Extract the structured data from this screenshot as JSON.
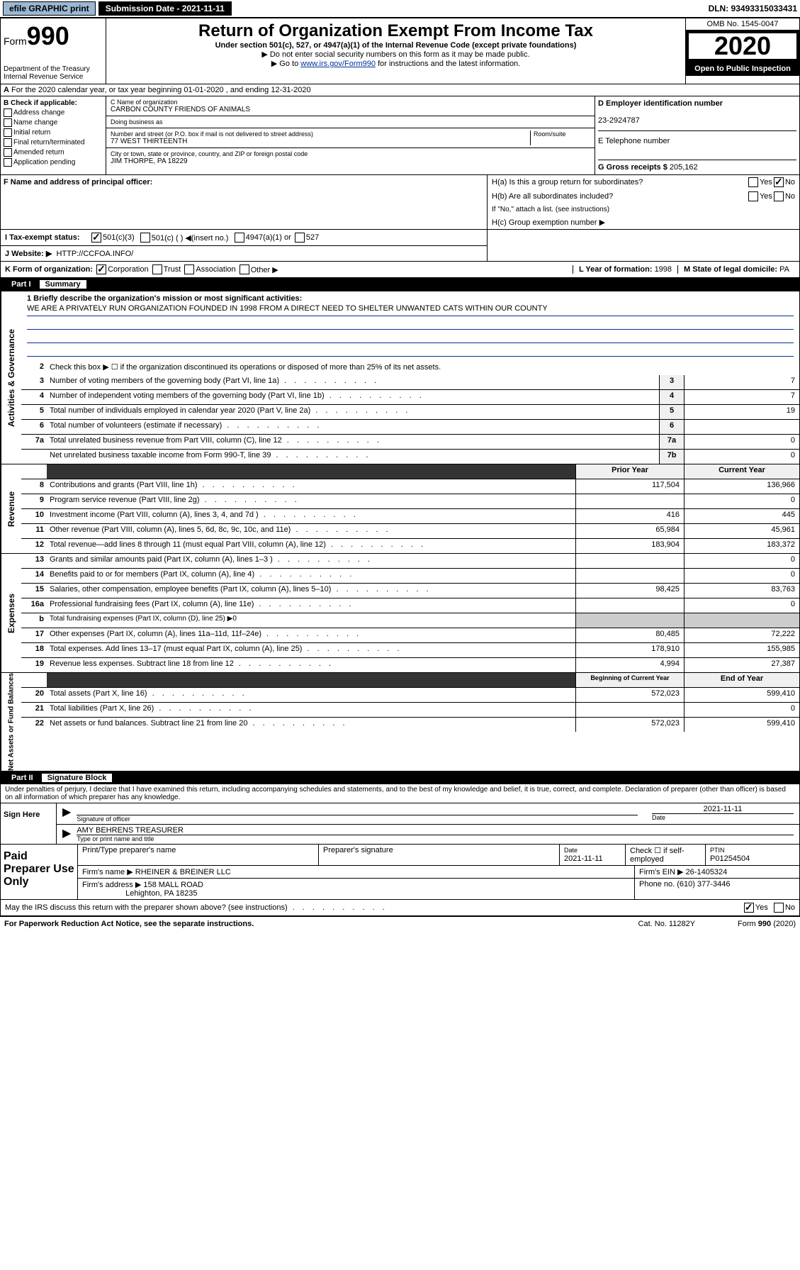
{
  "topbar": {
    "efile": "efile GRAPHIC print",
    "submission": "Submission Date - 2021-11-11",
    "dln": "DLN: 93493315033431"
  },
  "header": {
    "form_label": "Form",
    "form_num": "990",
    "dept": "Department of the Treasury Internal Revenue Service",
    "title": "Return of Organization Exempt From Income Tax",
    "subtitle": "Under section 501(c), 527, or 4947(a)(1) of the Internal Revenue Code (except private foundations)",
    "note1": "▶ Do not enter social security numbers on this form as it may be made public.",
    "note2_pre": "▶ Go to ",
    "note2_link": "www.irs.gov/Form990",
    "note2_post": " for instructions and the latest information.",
    "omb": "OMB No. 1545-0047",
    "year": "2020",
    "open": "Open to Public Inspection"
  },
  "rowA": "For the 2020 calendar year, or tax year beginning 01-01-2020    , and ending 12-31-2020",
  "sectionB": {
    "title": "B Check if applicable:",
    "items": [
      "Address change",
      "Name change",
      "Initial return",
      "Final return/terminated",
      "Amended return",
      "Application pending"
    ]
  },
  "sectionC": {
    "name_label": "C Name of organization",
    "name": "CARBON COUNTY FRIENDS OF ANIMALS",
    "dba_label": "Doing business as",
    "dba": "",
    "addr_label": "Number and street (or P.O. box if mail is not delivered to street address)",
    "room_label": "Room/suite",
    "addr": "77 WEST THIRTEENTH",
    "city_label": "City or town, state or province, country, and ZIP or foreign postal code",
    "city": "JIM THORPE, PA  18229"
  },
  "sectionD": {
    "ein_label": "D Employer identification number",
    "ein": "23-2924787",
    "phone_label": "E Telephone number",
    "phone": "",
    "gross_label": "G Gross receipts $",
    "gross": "205,162"
  },
  "sectionF": "F  Name and address of principal officer:",
  "sectionH": {
    "ha": "H(a)  Is this a group return for subordinates?",
    "hb": "H(b)  Are all subordinates included?",
    "hb_note": "If \"No,\" attach a list. (see instructions)",
    "hc": "H(c)  Group exemption number ▶"
  },
  "rowI": {
    "label": "I  Tax-exempt status:",
    "opt1": "501(c)(3)",
    "opt2": "501(c) (  ) ◀(insert no.)",
    "opt3": "4947(a)(1) or",
    "opt4": "527"
  },
  "rowJ": {
    "label": "J  Website: ▶",
    "url": "HTTP://CCFOA.INFO/"
  },
  "rowK": {
    "label": "K Form of organization:",
    "opts": [
      "Corporation",
      "Trust",
      "Association",
      "Other ▶"
    ],
    "l_label": "L Year of formation:",
    "l_val": "1998",
    "m_label": "M State of legal domicile:",
    "m_val": "PA"
  },
  "part1": {
    "label": "Part I",
    "title": "Summary"
  },
  "governance": {
    "label": "Activities & Governance",
    "line1_label": "1  Briefly describe the organization's mission or most significant activities:",
    "mission": "WE ARE A PRIVATELY RUN ORGANIZATION FOUNDED IN 1998 FROM A DIRECT NEED TO SHELTER UNWANTED CATS WITHIN OUR COUNTY",
    "line2": "Check this box ▶ ☐  if the organization discontinued its operations or disposed of more than 25% of its net assets.",
    "lines": [
      {
        "n": "3",
        "d": "Number of voting members of the governing body (Part VI, line 1a)",
        "box": "3",
        "v": "7"
      },
      {
        "n": "4",
        "d": "Number of independent voting members of the governing body (Part VI, line 1b)",
        "box": "4",
        "v": "7"
      },
      {
        "n": "5",
        "d": "Total number of individuals employed in calendar year 2020 (Part V, line 2a)",
        "box": "5",
        "v": "19"
      },
      {
        "n": "6",
        "d": "Total number of volunteers (estimate if necessary)",
        "box": "6",
        "v": ""
      },
      {
        "n": "7a",
        "d": "Total unrelated business revenue from Part VIII, column (C), line 12",
        "box": "7a",
        "v": "0"
      },
      {
        "n": "",
        "d": "Net unrelated business taxable income from Form 990-T, line 39",
        "box": "7b",
        "v": "0"
      }
    ]
  },
  "revenue": {
    "label": "Revenue",
    "header_prior": "Prior Year",
    "header_current": "Current Year",
    "lines": [
      {
        "n": "8",
        "d": "Contributions and grants (Part VIII, line 1h)",
        "p": "117,504",
        "c": "136,966"
      },
      {
        "n": "9",
        "d": "Program service revenue (Part VIII, line 2g)",
        "p": "",
        "c": "0"
      },
      {
        "n": "10",
        "d": "Investment income (Part VIII, column (A), lines 3, 4, and 7d )",
        "p": "416",
        "c": "445"
      },
      {
        "n": "11",
        "d": "Other revenue (Part VIII, column (A), lines 5, 6d, 8c, 9c, 10c, and 11e)",
        "p": "65,984",
        "c": "45,961"
      },
      {
        "n": "12",
        "d": "Total revenue—add lines 8 through 11 (must equal Part VIII, column (A), line 12)",
        "p": "183,904",
        "c": "183,372"
      }
    ]
  },
  "expenses": {
    "label": "Expenses",
    "lines": [
      {
        "n": "13",
        "d": "Grants and similar amounts paid (Part IX, column (A), lines 1–3 )",
        "p": "",
        "c": "0"
      },
      {
        "n": "14",
        "d": "Benefits paid to or for members (Part IX, column (A), line 4)",
        "p": "",
        "c": "0"
      },
      {
        "n": "15",
        "d": "Salaries, other compensation, employee benefits (Part IX, column (A), lines 5–10)",
        "p": "98,425",
        "c": "83,763"
      },
      {
        "n": "16a",
        "d": "Professional fundraising fees (Part IX, column (A), line 11e)",
        "p": "",
        "c": "0"
      },
      {
        "n": "b",
        "d": "Total fundraising expenses (Part IX, column (D), line 25) ▶0",
        "p": "—",
        "c": "—"
      },
      {
        "n": "17",
        "d": "Other expenses (Part IX, column (A), lines 11a–11d, 11f–24e)",
        "p": "80,485",
        "c": "72,222"
      },
      {
        "n": "18",
        "d": "Total expenses. Add lines 13–17 (must equal Part IX, column (A), line 25)",
        "p": "178,910",
        "c": "155,985"
      },
      {
        "n": "19",
        "d": "Revenue less expenses. Subtract line 18 from line 12",
        "p": "4,994",
        "c": "27,387"
      }
    ]
  },
  "netassets": {
    "label": "Net Assets or Fund Balances",
    "header_prior": "Beginning of Current Year",
    "header_current": "End of Year",
    "lines": [
      {
        "n": "20",
        "d": "Total assets (Part X, line 16)",
        "p": "572,023",
        "c": "599,410"
      },
      {
        "n": "21",
        "d": "Total liabilities (Part X, line 26)",
        "p": "",
        "c": "0"
      },
      {
        "n": "22",
        "d": "Net assets or fund balances. Subtract line 21 from line 20",
        "p": "572,023",
        "c": "599,410"
      }
    ]
  },
  "part2": {
    "label": "Part II",
    "title": "Signature Block",
    "perjury": "Under penalties of perjury, I declare that I have examined this return, including accompanying schedules and statements, and to the best of my knowledge and belief, it is true, correct, and complete. Declaration of preparer (other than officer) is based on all information of which preparer has any knowledge."
  },
  "sign": {
    "label": "Sign Here",
    "sig_label": "Signature of officer",
    "date": "2021-11-11",
    "date_label": "Date",
    "name": "AMY BEHRENS TREASURER",
    "name_label": "Type or print name and title"
  },
  "preparer": {
    "label": "Paid Preparer Use Only",
    "col1": "Print/Type preparer's name",
    "col2": "Preparer's signature",
    "col3_label": "Date",
    "col3": "2021-11-11",
    "col4": "Check ☐ if self-employed",
    "col5_label": "PTIN",
    "col5": "P01254504",
    "firm_label": "Firm's name    ▶",
    "firm": "RHEINER & BREINER LLC",
    "ein_label": "Firm's EIN ▶",
    "ein": "26-1405324",
    "addr_label": "Firm's address ▶",
    "addr": "158 MALL ROAD",
    "addr2": "Lehighton, PA  18235",
    "phone_label": "Phone no.",
    "phone": "(610) 377-3446"
  },
  "discuss": "May the IRS discuss this return with the preparer shown above? (see instructions)",
  "footer": {
    "left": "For Paperwork Reduction Act Notice, see the separate instructions.",
    "mid": "Cat. No. 11282Y",
    "right": "Form 990 (2020)"
  }
}
